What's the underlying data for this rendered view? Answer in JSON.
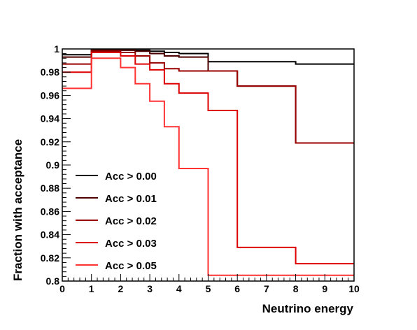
{
  "chart_data": {
    "type": "line",
    "style": "step-histogram",
    "title": "",
    "xlabel": "Neutrino energy",
    "ylabel": "Fraction with acceptance",
    "xlim": [
      0,
      10
    ],
    "ylim": [
      0.8,
      1.0
    ],
    "x_ticks": [
      "0",
      "1",
      "2",
      "3",
      "4",
      "5",
      "6",
      "7",
      "8",
      "9",
      "10"
    ],
    "y_ticks": [
      "0.8",
      "0.82",
      "0.84",
      "0.86",
      "0.88",
      "0.9",
      "0.92",
      "0.94",
      "0.96",
      "0.98",
      "1"
    ],
    "grid": false,
    "legend_position": "lower-left",
    "series": [
      {
        "name": "Acc > 0.00",
        "color": "#000000",
        "edges": [
          0,
          1,
          1.5,
          2,
          2.5,
          3,
          3.5,
          4,
          5,
          6,
          8,
          10
        ],
        "values": [
          0.995,
          0.999,
          0.999,
          0.999,
          0.999,
          0.998,
          0.997,
          0.996,
          0.989,
          0.989,
          0.987
        ]
      },
      {
        "name": "Acc > 0.01",
        "color": "#4d0000",
        "edges": [
          0,
          1,
          1.5,
          2,
          2.5,
          3,
          3.5,
          4,
          5,
          6,
          8,
          10
        ],
        "values": [
          0.993,
          0.999,
          0.999,
          0.999,
          0.998,
          0.996,
          0.994,
          0.993,
          0.981,
          0.968,
          0.919
        ]
      },
      {
        "name": "Acc > 0.02",
        "color": "#990000",
        "edges": [
          0,
          1,
          1.5,
          2,
          2.5,
          3,
          3.5,
          4,
          5,
          6,
          8,
          10
        ],
        "values": [
          0.987,
          0.998,
          0.998,
          0.997,
          0.994,
          0.988,
          0.983,
          0.981,
          0.981,
          0.968,
          0.919
        ]
      },
      {
        "name": "Acc > 0.03",
        "color": "#dd0000",
        "edges": [
          0,
          1,
          1.5,
          2,
          2.5,
          3,
          3.5,
          4,
          5,
          6,
          8,
          10
        ],
        "values": [
          0.98,
          0.997,
          0.997,
          0.994,
          0.987,
          0.982,
          0.97,
          0.962,
          0.947,
          0.829,
          0.815
        ]
      },
      {
        "name": "Acc > 0.05",
        "color": "#ff3333",
        "edges": [
          0,
          1,
          1.5,
          2,
          2.5,
          3,
          3.5,
          4,
          5,
          6,
          8,
          10
        ],
        "values": [
          0.966,
          0.992,
          0.992,
          0.984,
          0.97,
          0.955,
          0.933,
          0.897,
          0.805,
          0.805,
          0.805
        ]
      }
    ]
  }
}
